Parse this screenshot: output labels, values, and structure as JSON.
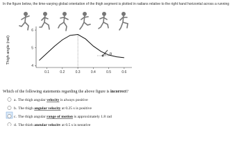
{
  "instruction": "In the figure below, the time-varying global orientation of the thigh segment is plotted in radians relative to the right hand horizontal across a running",
  "chart_data": {
    "type": "line",
    "ylabel": "Thigh angle (rad)",
    "annotation": "θ",
    "color": "#111",
    "x": [
      0.05,
      0.1,
      0.15,
      0.2,
      0.25,
      0.3,
      0.35,
      0.4,
      0.45,
      0.5,
      0.55,
      0.6
    ],
    "values": [
      4.3,
      4.7,
      5.1,
      5.45,
      5.7,
      5.75,
      5.5,
      5.1,
      4.8,
      4.6,
      4.5,
      4.45
    ],
    "xlim": [
      0.03,
      0.65
    ],
    "xticks": [
      0.1,
      0.2,
      0.3,
      0.4,
      0.5,
      0.6
    ],
    "ylim": [
      3.9,
      6.2
    ],
    "yticks": [
      4,
      5,
      6
    ]
  },
  "question": {
    "text": "Which of the following statements regarding the above figure is ",
    "emphasis": "incorrect",
    "end": "?"
  },
  "options": [
    {
      "label": "a.",
      "before": "The thigh angular ",
      "bold": "velocity",
      "after": " is always positive"
    },
    {
      "label": "b.",
      "before": "The thigh ",
      "bold": "angular velocity",
      "after": " at 0.25 s is positive"
    },
    {
      "label": "c.",
      "before": "The thigh angular ",
      "bold": "range of motion",
      "after": " is approximately 1.8 rad"
    },
    {
      "label": "d.",
      "before": "The thigh ",
      "bold": "angular velocity",
      "after": " at 0.5 s is negative"
    }
  ]
}
